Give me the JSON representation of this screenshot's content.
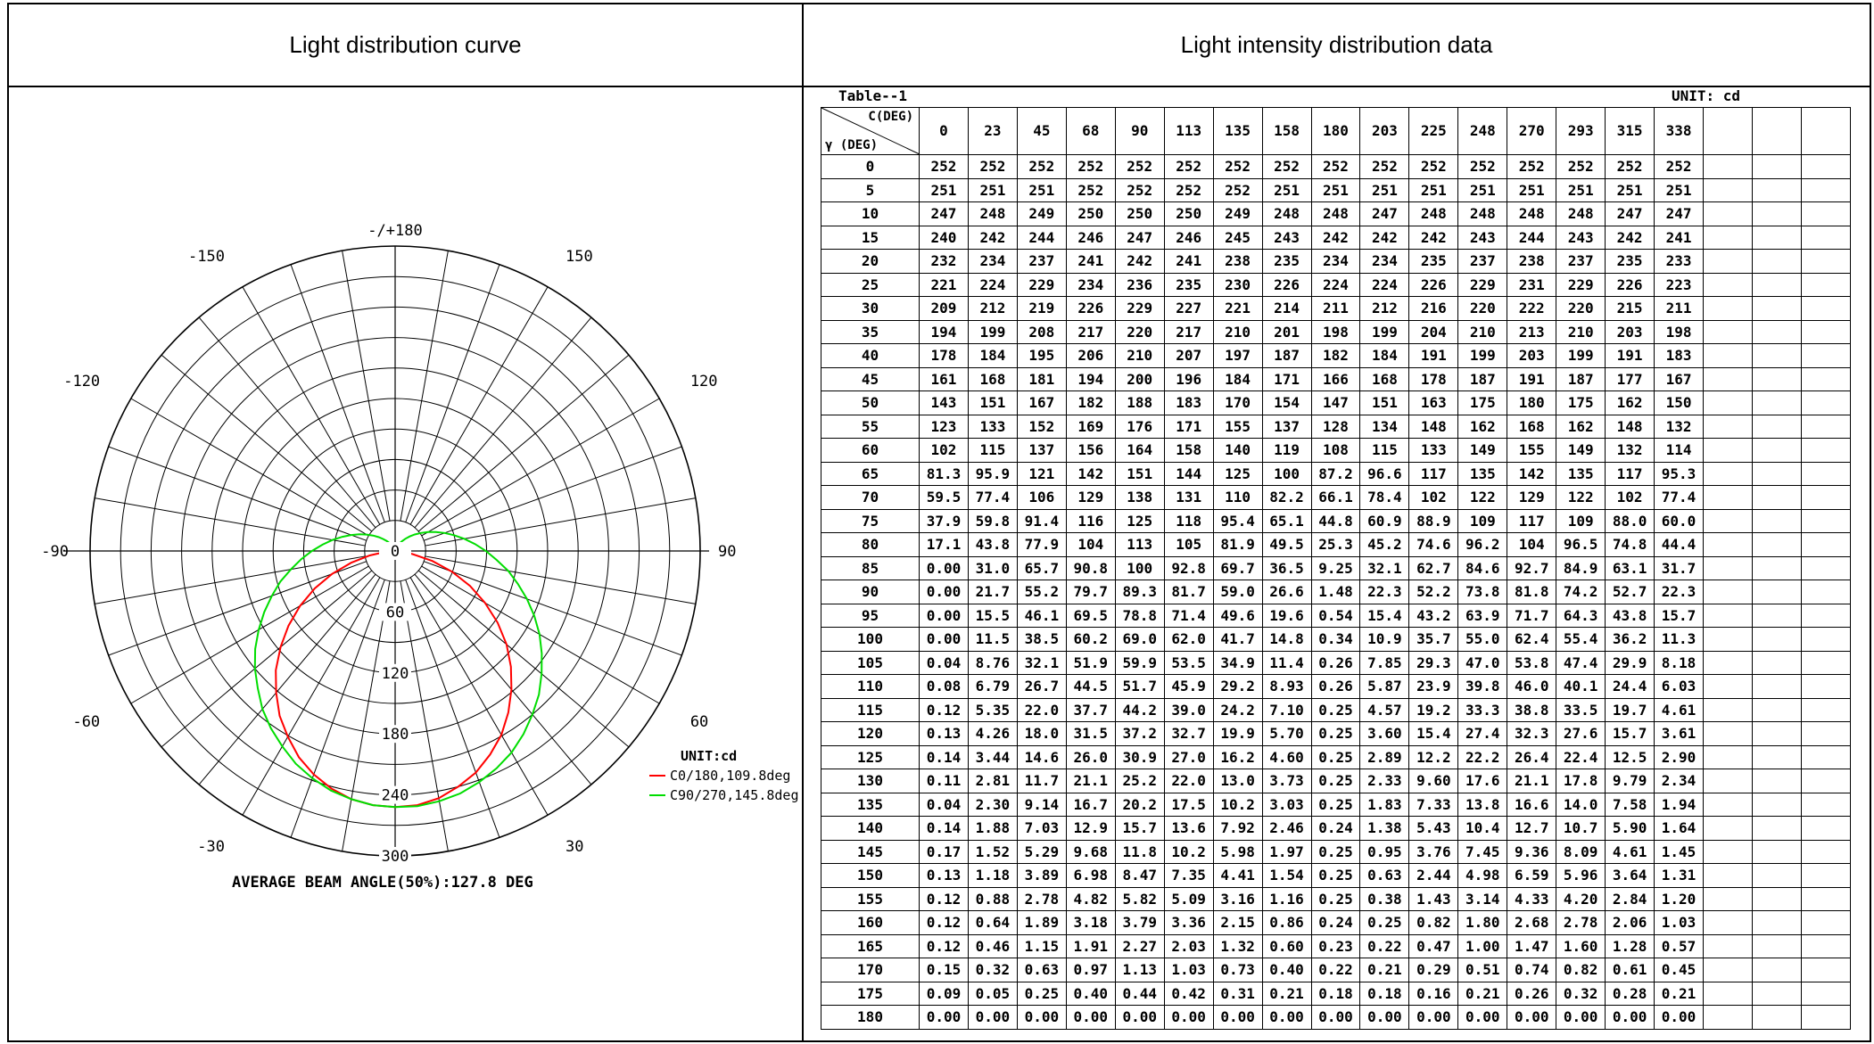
{
  "headers": {
    "left": "Light distribution curve",
    "right": "Light intensity distribution data"
  },
  "chart_data": [
    {
      "type": "polar",
      "ticks_outer": [
        "-/+180",
        "150",
        "120",
        "90",
        "60",
        "30",
        "0",
        "-30",
        "-60",
        "-90",
        "-120",
        "-150"
      ],
      "ring_labels": [
        "0",
        "60",
        "120",
        "180",
        "240",
        "300"
      ],
      "ring_values": [
        0,
        60,
        120,
        180,
        240,
        300
      ],
      "rmax": 300,
      "unit_label": "UNIT:cd",
      "footer": "AVERAGE BEAM ANGLE(50%):127.8 DEG",
      "gamma_deg": [
        0,
        5,
        10,
        15,
        20,
        25,
        30,
        35,
        40,
        45,
        50,
        55,
        60,
        65,
        70,
        75,
        80,
        85,
        90,
        95,
        100,
        105,
        110,
        115,
        120,
        125,
        130,
        135,
        140,
        145,
        150,
        155,
        160,
        165,
        170,
        175,
        180
      ],
      "series": [
        {
          "name": "C0/180,109.8deg",
          "color": "#ff0000",
          "plane_a": [
            252,
            251,
            247,
            240,
            232,
            221,
            209,
            194,
            178,
            161,
            143,
            123,
            102,
            81.3,
            59.5,
            37.9,
            17.1,
            0,
            0,
            0,
            0,
            0.04,
            0.08,
            0.12,
            0.13,
            0.14,
            0.11,
            0.04,
            0.14,
            0.17,
            0.13,
            0.12,
            0.12,
            0.12,
            0.15,
            0.09,
            0
          ],
          "plane_b": [
            252,
            251,
            248,
            242,
            234,
            224,
            211,
            198,
            182,
            166,
            147,
            128,
            108,
            87.2,
            66.1,
            44.8,
            25.3,
            9.25,
            1.48,
            0.54,
            0.34,
            0.26,
            0.26,
            0.25,
            0.25,
            0.25,
            0.25,
            0.25,
            0.24,
            0.25,
            0.25,
            0.25,
            0.24,
            0.23,
            0.22,
            0.18,
            0
          ]
        },
        {
          "name": "C90/270,145.8deg",
          "color": "#00dd00",
          "plane_a": [
            252,
            252,
            250,
            247,
            242,
            236,
            229,
            220,
            210,
            200,
            188,
            176,
            164,
            151,
            138,
            125,
            113,
            100,
            89.3,
            78.8,
            69.0,
            59.9,
            51.7,
            44.2,
            37.2,
            30.9,
            25.2,
            20.2,
            15.7,
            11.8,
            8.47,
            5.82,
            3.79,
            2.27,
            1.13,
            0.44,
            0
          ],
          "plane_b": [
            252,
            251,
            248,
            244,
            238,
            231,
            222,
            213,
            203,
            191,
            180,
            168,
            155,
            142,
            129,
            117,
            104,
            92.7,
            81.8,
            71.7,
            62.4,
            53.8,
            46.0,
            38.8,
            32.3,
            26.4,
            21.1,
            16.6,
            12.7,
            9.36,
            6.59,
            4.33,
            2.68,
            1.47,
            0.74,
            0.26,
            0
          ]
        }
      ]
    },
    {
      "type": "table",
      "title": "Table--1",
      "unit": "UNIT: cd",
      "c_label": "C(DEG)",
      "gamma_label": "γ (DEG)",
      "columns": [
        "0",
        "23",
        "45",
        "68",
        "90",
        "113",
        "135",
        "158",
        "180",
        "203",
        "225",
        "248",
        "270",
        "293",
        "315",
        "338",
        "",
        "",
        ""
      ],
      "rows": [
        [
          "0",
          "252",
          "252",
          "252",
          "252",
          "252",
          "252",
          "252",
          "252",
          "252",
          "252",
          "252",
          "252",
          "252",
          "252",
          "252",
          "252",
          "",
          "",
          ""
        ],
        [
          "5",
          "251",
          "251",
          "251",
          "252",
          "252",
          "252",
          "252",
          "251",
          "251",
          "251",
          "251",
          "251",
          "251",
          "251",
          "251",
          "251",
          "",
          "",
          ""
        ],
        [
          "10",
          "247",
          "248",
          "249",
          "250",
          "250",
          "250",
          "249",
          "248",
          "248",
          "247",
          "248",
          "248",
          "248",
          "248",
          "247",
          "247",
          "",
          "",
          ""
        ],
        [
          "15",
          "240",
          "242",
          "244",
          "246",
          "247",
          "246",
          "245",
          "243",
          "242",
          "242",
          "242",
          "243",
          "244",
          "243",
          "242",
          "241",
          "",
          "",
          ""
        ],
        [
          "20",
          "232",
          "234",
          "237",
          "241",
          "242",
          "241",
          "238",
          "235",
          "234",
          "234",
          "235",
          "237",
          "238",
          "237",
          "235",
          "233",
          "",
          "",
          ""
        ],
        [
          "25",
          "221",
          "224",
          "229",
          "234",
          "236",
          "235",
          "230",
          "226",
          "224",
          "224",
          "226",
          "229",
          "231",
          "229",
          "226",
          "223",
          "",
          "",
          ""
        ],
        [
          "30",
          "209",
          "212",
          "219",
          "226",
          "229",
          "227",
          "221",
          "214",
          "211",
          "212",
          "216",
          "220",
          "222",
          "220",
          "215",
          "211",
          "",
          "",
          ""
        ],
        [
          "35",
          "194",
          "199",
          "208",
          "217",
          "220",
          "217",
          "210",
          "201",
          "198",
          "199",
          "204",
          "210",
          "213",
          "210",
          "203",
          "198",
          "",
          "",
          ""
        ],
        [
          "40",
          "178",
          "184",
          "195",
          "206",
          "210",
          "207",
          "197",
          "187",
          "182",
          "184",
          "191",
          "199",
          "203",
          "199",
          "191",
          "183",
          "",
          "",
          ""
        ],
        [
          "45",
          "161",
          "168",
          "181",
          "194",
          "200",
          "196",
          "184",
          "171",
          "166",
          "168",
          "178",
          "187",
          "191",
          "187",
          "177",
          "167",
          "",
          "",
          ""
        ],
        [
          "50",
          "143",
          "151",
          "167",
          "182",
          "188",
          "183",
          "170",
          "154",
          "147",
          "151",
          "163",
          "175",
          "180",
          "175",
          "162",
          "150",
          "",
          "",
          ""
        ],
        [
          "55",
          "123",
          "133",
          "152",
          "169",
          "176",
          "171",
          "155",
          "137",
          "128",
          "134",
          "148",
          "162",
          "168",
          "162",
          "148",
          "132",
          "",
          "",
          ""
        ],
        [
          "60",
          "102",
          "115",
          "137",
          "156",
          "164",
          "158",
          "140",
          "119",
          "108",
          "115",
          "133",
          "149",
          "155",
          "149",
          "132",
          "114",
          "",
          "",
          ""
        ],
        [
          "65",
          "81.3",
          "95.9",
          "121",
          "142",
          "151",
          "144",
          "125",
          "100",
          "87.2",
          "96.6",
          "117",
          "135",
          "142",
          "135",
          "117",
          "95.3",
          "",
          "",
          ""
        ],
        [
          "70",
          "59.5",
          "77.4",
          "106",
          "129",
          "138",
          "131",
          "110",
          "82.2",
          "66.1",
          "78.4",
          "102",
          "122",
          "129",
          "122",
          "102",
          "77.4",
          "",
          "",
          ""
        ],
        [
          "75",
          "37.9",
          "59.8",
          "91.4",
          "116",
          "125",
          "118",
          "95.4",
          "65.1",
          "44.8",
          "60.9",
          "88.9",
          "109",
          "117",
          "109",
          "88.0",
          "60.0",
          "",
          "",
          ""
        ],
        [
          "80",
          "17.1",
          "43.8",
          "77.9",
          "104",
          "113",
          "105",
          "81.9",
          "49.5",
          "25.3",
          "45.2",
          "74.6",
          "96.2",
          "104",
          "96.5",
          "74.8",
          "44.4",
          "",
          "",
          ""
        ],
        [
          "85",
          "0.00",
          "31.0",
          "65.7",
          "90.8",
          "100",
          "92.8",
          "69.7",
          "36.5",
          "9.25",
          "32.1",
          "62.7",
          "84.6",
          "92.7",
          "84.9",
          "63.1",
          "31.7",
          "",
          "",
          ""
        ],
        [
          "90",
          "0.00",
          "21.7",
          "55.2",
          "79.7",
          "89.3",
          "81.7",
          "59.0",
          "26.6",
          "1.48",
          "22.3",
          "52.2",
          "73.8",
          "81.8",
          "74.2",
          "52.7",
          "22.3",
          "",
          "",
          ""
        ],
        [
          "95",
          "0.00",
          "15.5",
          "46.1",
          "69.5",
          "78.8",
          "71.4",
          "49.6",
          "19.6",
          "0.54",
          "15.4",
          "43.2",
          "63.9",
          "71.7",
          "64.3",
          "43.8",
          "15.7",
          "",
          "",
          ""
        ],
        [
          "100",
          "0.00",
          "11.5",
          "38.5",
          "60.2",
          "69.0",
          "62.0",
          "41.7",
          "14.8",
          "0.34",
          "10.9",
          "35.7",
          "55.0",
          "62.4",
          "55.4",
          "36.2",
          "11.3",
          "",
          "",
          ""
        ],
        [
          "105",
          "0.04",
          "8.76",
          "32.1",
          "51.9",
          "59.9",
          "53.5",
          "34.9",
          "11.4",
          "0.26",
          "7.85",
          "29.3",
          "47.0",
          "53.8",
          "47.4",
          "29.9",
          "8.18",
          "",
          "",
          ""
        ],
        [
          "110",
          "0.08",
          "6.79",
          "26.7",
          "44.5",
          "51.7",
          "45.9",
          "29.2",
          "8.93",
          "0.26",
          "5.87",
          "23.9",
          "39.8",
          "46.0",
          "40.1",
          "24.4",
          "6.03",
          "",
          "",
          ""
        ],
        [
          "115",
          "0.12",
          "5.35",
          "22.0",
          "37.7",
          "44.2",
          "39.0",
          "24.2",
          "7.10",
          "0.25",
          "4.57",
          "19.2",
          "33.3",
          "38.8",
          "33.5",
          "19.7",
          "4.61",
          "",
          "",
          ""
        ],
        [
          "120",
          "0.13",
          "4.26",
          "18.0",
          "31.5",
          "37.2",
          "32.7",
          "19.9",
          "5.70",
          "0.25",
          "3.60",
          "15.4",
          "27.4",
          "32.3",
          "27.6",
          "15.7",
          "3.61",
          "",
          "",
          ""
        ],
        [
          "125",
          "0.14",
          "3.44",
          "14.6",
          "26.0",
          "30.9",
          "27.0",
          "16.2",
          "4.60",
          "0.25",
          "2.89",
          "12.2",
          "22.2",
          "26.4",
          "22.4",
          "12.5",
          "2.90",
          "",
          "",
          ""
        ],
        [
          "130",
          "0.11",
          "2.81",
          "11.7",
          "21.1",
          "25.2",
          "22.0",
          "13.0",
          "3.73",
          "0.25",
          "2.33",
          "9.60",
          "17.6",
          "21.1",
          "17.8",
          "9.79",
          "2.34",
          "",
          "",
          ""
        ],
        [
          "135",
          "0.04",
          "2.30",
          "9.14",
          "16.7",
          "20.2",
          "17.5",
          "10.2",
          "3.03",
          "0.25",
          "1.83",
          "7.33",
          "13.8",
          "16.6",
          "14.0",
          "7.58",
          "1.94",
          "",
          "",
          ""
        ],
        [
          "140",
          "0.14",
          "1.88",
          "7.03",
          "12.9",
          "15.7",
          "13.6",
          "7.92",
          "2.46",
          "0.24",
          "1.38",
          "5.43",
          "10.4",
          "12.7",
          "10.7",
          "5.90",
          "1.64",
          "",
          "",
          ""
        ],
        [
          "145",
          "0.17",
          "1.52",
          "5.29",
          "9.68",
          "11.8",
          "10.2",
          "5.98",
          "1.97",
          "0.25",
          "0.95",
          "3.76",
          "7.45",
          "9.36",
          "8.09",
          "4.61",
          "1.45",
          "",
          "",
          ""
        ],
        [
          "150",
          "0.13",
          "1.18",
          "3.89",
          "6.98",
          "8.47",
          "7.35",
          "4.41",
          "1.54",
          "0.25",
          "0.63",
          "2.44",
          "4.98",
          "6.59",
          "5.96",
          "3.64",
          "1.31",
          "",
          "",
          ""
        ],
        [
          "155",
          "0.12",
          "0.88",
          "2.78",
          "4.82",
          "5.82",
          "5.09",
          "3.16",
          "1.16",
          "0.25",
          "0.38",
          "1.43",
          "3.14",
          "4.33",
          "4.20",
          "2.84",
          "1.20",
          "",
          "",
          ""
        ],
        [
          "160",
          "0.12",
          "0.64",
          "1.89",
          "3.18",
          "3.79",
          "3.36",
          "2.15",
          "0.86",
          "0.24",
          "0.25",
          "0.82",
          "1.80",
          "2.68",
          "2.78",
          "2.06",
          "1.03",
          "",
          "",
          ""
        ],
        [
          "165",
          "0.12",
          "0.46",
          "1.15",
          "1.91",
          "2.27",
          "2.03",
          "1.32",
          "0.60",
          "0.23",
          "0.22",
          "0.47",
          "1.00",
          "1.47",
          "1.60",
          "1.28",
          "0.57",
          "",
          "",
          ""
        ],
        [
          "170",
          "0.15",
          "0.32",
          "0.63",
          "0.97",
          "1.13",
          "1.03",
          "0.73",
          "0.40",
          "0.22",
          "0.21",
          "0.29",
          "0.51",
          "0.74",
          "0.82",
          "0.61",
          "0.45",
          "",
          "",
          ""
        ],
        [
          "175",
          "0.09",
          "0.05",
          "0.25",
          "0.40",
          "0.44",
          "0.42",
          "0.31",
          "0.21",
          "0.18",
          "0.18",
          "0.16",
          "0.21",
          "0.26",
          "0.32",
          "0.28",
          "0.21",
          "",
          "",
          ""
        ],
        [
          "180",
          "0.00",
          "0.00",
          "0.00",
          "0.00",
          "0.00",
          "0.00",
          "0.00",
          "0.00",
          "0.00",
          "0.00",
          "0.00",
          "0.00",
          "0.00",
          "0.00",
          "0.00",
          "0.00",
          "",
          "",
          ""
        ]
      ]
    }
  ]
}
